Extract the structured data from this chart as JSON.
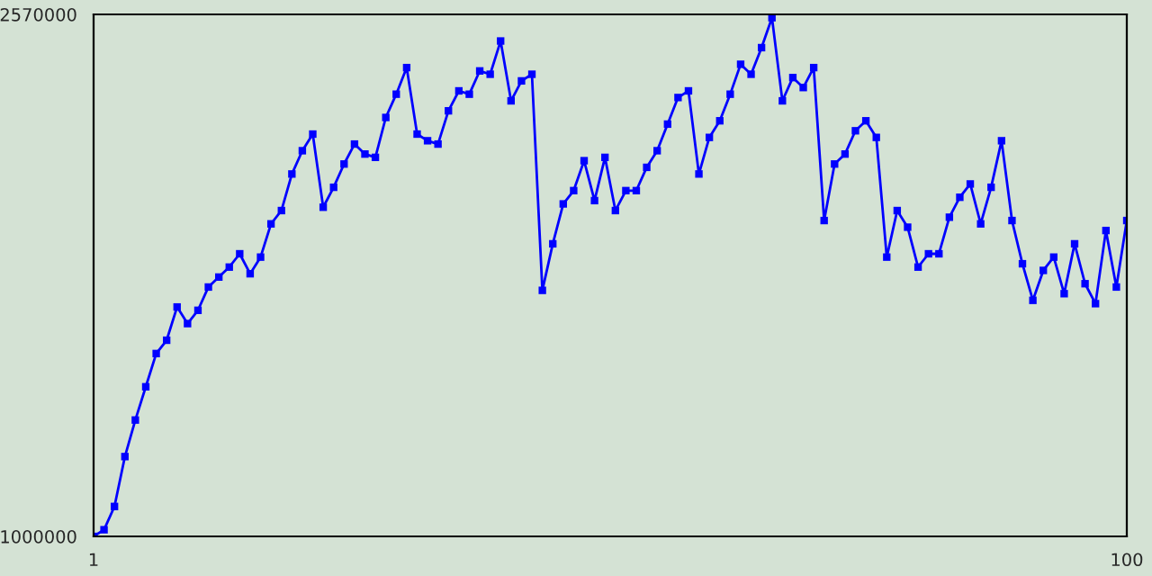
{
  "chart_data": {
    "type": "line",
    "marker": "square",
    "x": [
      1,
      2,
      3,
      4,
      5,
      6,
      7,
      8,
      9,
      10,
      11,
      12,
      13,
      14,
      15,
      16,
      17,
      18,
      19,
      20,
      21,
      22,
      23,
      24,
      25,
      26,
      27,
      28,
      29,
      30,
      31,
      32,
      33,
      34,
      35,
      36,
      37,
      38,
      39,
      40,
      41,
      42,
      43,
      44,
      45,
      46,
      47,
      48,
      49,
      50,
      51,
      52,
      53,
      54,
      55,
      56,
      57,
      58,
      59,
      60,
      61,
      62,
      63,
      64,
      65,
      66,
      67,
      68,
      69,
      70,
      71,
      72,
      73,
      74,
      75,
      76,
      77,
      78,
      79,
      80,
      81,
      82,
      83,
      84,
      85,
      86,
      87,
      88,
      89,
      90,
      91,
      92,
      93,
      94,
      95,
      96,
      97,
      98,
      99,
      100
    ],
    "series": [
      {
        "color": "#0000ff",
        "values": [
          1000000,
          1020000,
          1090000,
          1240000,
          1350000,
          1450000,
          1550000,
          1590000,
          1690000,
          1640000,
          1680000,
          1750000,
          1780000,
          1810000,
          1850000,
          1790000,
          1840000,
          1940000,
          1980000,
          2090000,
          2160000,
          2210000,
          1990000,
          2050000,
          2120000,
          2180000,
          2150000,
          2140000,
          2260000,
          2330000,
          2410000,
          2210000,
          2190000,
          2180000,
          2280000,
          2340000,
          2330000,
          2400000,
          2390000,
          2490000,
          2310000,
          2370000,
          2390000,
          1740000,
          1880000,
          2000000,
          2040000,
          2130000,
          2010000,
          2140000,
          1980000,
          2040000,
          2040000,
          2110000,
          2160000,
          2240000,
          2320000,
          2340000,
          2090000,
          2200000,
          2250000,
          2330000,
          2420000,
          2390000,
          2470000,
          2560000,
          2310000,
          2380000,
          2350000,
          2410000,
          1950000,
          2120000,
          2150000,
          2220000,
          2250000,
          2200000,
          1840000,
          1980000,
          1930000,
          1810000,
          1850000,
          1850000,
          1960000,
          2020000,
          2060000,
          1940000,
          2050000,
          2190000,
          1950000,
          1820000,
          1710000,
          1800000,
          1840000,
          1730000,
          1880000,
          1760000,
          1700000,
          1920000,
          1750000,
          1950000
        ]
      }
    ],
    "xlim": [
      1,
      100
    ],
    "xticks": [
      1,
      100
    ],
    "ylim": [
      1000000,
      2570000
    ],
    "yticks": [
      1000000,
      2570000
    ]
  }
}
